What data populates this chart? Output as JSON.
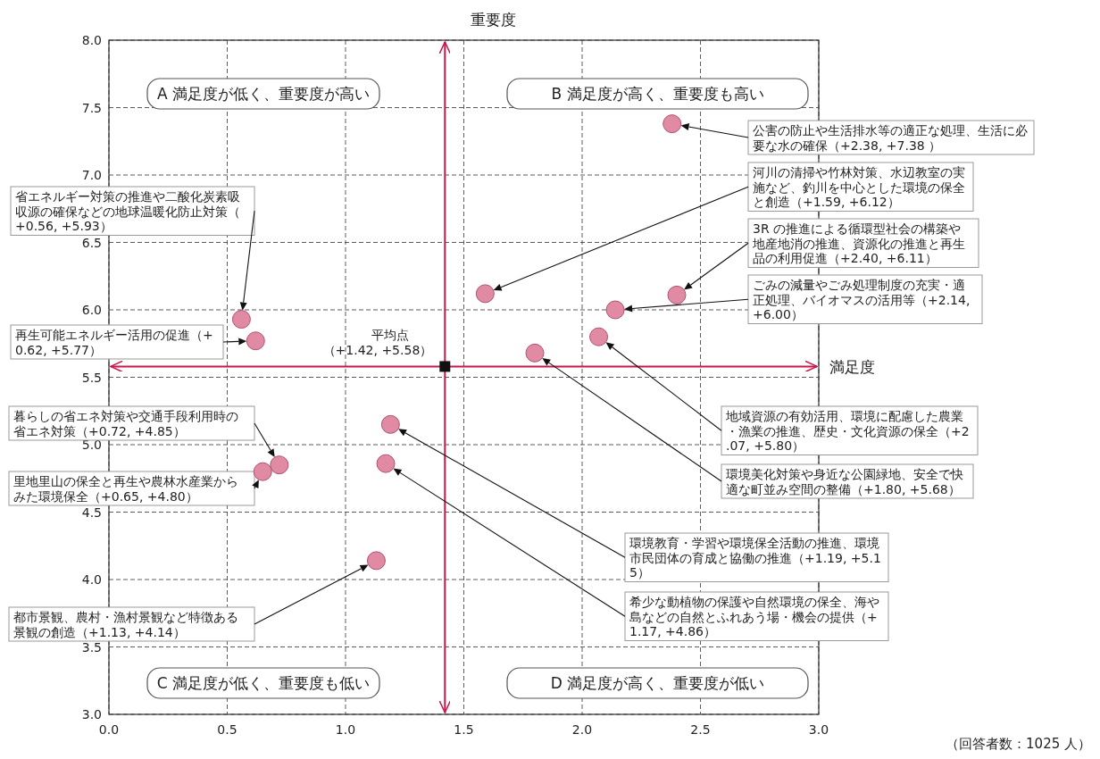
{
  "chart_data": {
    "type": "scatter",
    "xlabel": "満足度",
    "ylabel": "重要度",
    "xlim": [
      0,
      3
    ],
    "ylim": [
      3,
      8
    ],
    "xticks": [
      {
        "value": 0,
        "label": "0.0"
      },
      {
        "value": 0.5,
        "label": "0.5"
      },
      {
        "value": 1,
        "label": "1.0"
      },
      {
        "value": 1.5,
        "label": "1.5"
      },
      {
        "value": 2,
        "label": "2.0"
      },
      {
        "value": 2.5,
        "label": "2.5"
      },
      {
        "value": 3,
        "label": "3.0"
      }
    ],
    "yticks": [
      {
        "value": 3,
        "label": "3.0"
      },
      {
        "value": 3.5,
        "label": "3.5"
      },
      {
        "value": 4,
        "label": "4.0"
      },
      {
        "value": 4.5,
        "label": "4.5"
      },
      {
        "value": 5,
        "label": "5.0"
      },
      {
        "value": 5.5,
        "label": "5.5"
      },
      {
        "value": 6,
        "label": "6.0"
      },
      {
        "value": 6.5,
        "label": "6.5"
      },
      {
        "value": 7,
        "label": "7.0"
      },
      {
        "value": 7.5,
        "label": "7.5"
      },
      {
        "value": 8,
        "label": "8.0"
      }
    ],
    "grid": true,
    "series": [
      {
        "color": "#e08aa3",
        "marker": "circle",
        "x": [
          2.38,
          1.59,
          2.4,
          2.14,
          2.07,
          1.8,
          1.19,
          1.17,
          0.56,
          0.62,
          0.72,
          0.65,
          1.13
        ],
        "values": [
          7.38,
          6.12,
          6.11,
          6.0,
          5.8,
          5.68,
          5.15,
          4.86,
          5.93,
          5.77,
          4.85,
          4.8,
          4.14
        ]
      },
      {
        "color": "#111111",
        "marker": "square",
        "x": [
          1.42
        ],
        "values": [
          5.58
        ]
      }
    ],
    "ref_lines": [
      {
        "axis": "x",
        "value": 1.42,
        "color": "#c8174a"
      },
      {
        "axis": "y",
        "value": 5.58,
        "color": "#c8174a"
      }
    ],
    "annotations": [
      "公害の防止や生活排水等の適正な処理、生活に必要な水の確保（+2.38, +7.38 ）",
      "河川の清掃や竹林対策、水辺教室の実施など、釣川を中心とした環境の保全と創造（+1.59, +6.12）",
      "3R の推進による循環型社会の構築や地産地消の推進、資源化の推進と再生品の利用促進（+2.40, +6.11）",
      "ごみの減量やごみ処理制度の充実・適正処理、バイオマスの活用等（+2.14, +6.00）",
      "地域資源の有効活用、環境に配慮した農業・漁業の推進、歴史・文化資源の保全（+2.07, +5.80）",
      "環境美化対策や身近な公園緑地、安全で快適な町並み空間の整備（+1.80, +5.68）",
      "環境教育・学習や環境保全活動の推進、環境市民団体の育成と協働の推進（+1.19, +5.15）",
      "希少な動植物の保護や自然環境の保全、海や島などの自然とふれあう場・機会の提供（+1.17, +4.86）",
      "省エネルギー対策の推進や二酸化炭素吸収源の確保などの地球温暖化防止対策（+0.56, +5.93）",
      "再生可能エネルギー活用の促進（+0.62, +5.77）",
      "暮らしの省エネ対策や交通手段利用時の省エネ対策（+0.72, +4.85）",
      "里地里山の保全と再生や農林水産業からみた環境保全（+0.65, +4.80）",
      "都市景観、農村・漁村景観など特徴ある景観の創造（+1.13, +4.14）",
      {
        "text": "平均点（+1.42, +5.58）",
        "x": 1.42,
        "y": 5.58
      },
      "A 満足度が低く、重要度が高い",
      "B 満足度が高く、重要度も高い",
      "C 満足度が低く、重要度も低い",
      "D 満足度が高く、重要度が低い",
      "（回答者数：1025 人）"
    ]
  }
}
